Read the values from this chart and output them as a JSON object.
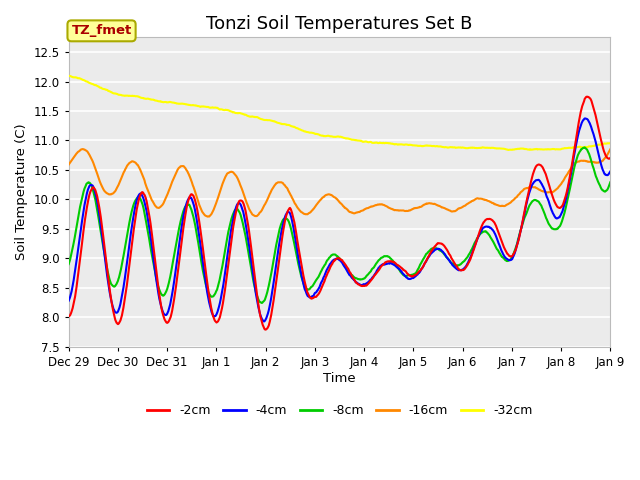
{
  "title": "Tonzi Soil Temperatures Set B",
  "xlabel": "Time",
  "ylabel": "Soil Temperature (C)",
  "ylim": [
    7.5,
    12.75
  ],
  "xlim": [
    0,
    11.0
  ],
  "legend_labels": [
    "-2cm",
    "-4cm",
    "-8cm",
    "-16cm",
    "-32cm"
  ],
  "legend_colors": [
    "#ff0000",
    "#0000ff",
    "#00cc00",
    "#ff8800",
    "#ffff00"
  ],
  "annotation_text": "TZ_fmet",
  "annotation_bg": "#ffff99",
  "annotation_border": "#aaaa00",
  "annotation_textcolor": "#aa0000",
  "xtick_labels": [
    "Dec 29",
    "Dec 30",
    "Dec 31",
    "Jan 1",
    "Jan 2",
    "Jan 3",
    "Jan 4",
    "Jan 5",
    "Jan 6",
    "Jan 7",
    "Jan 8",
    "Jan 9"
  ],
  "xtick_positions": [
    0,
    1,
    2,
    3,
    4,
    5,
    6,
    7,
    8,
    9,
    10,
    11
  ],
  "bg_color": "#ffffff",
  "plot_bg_color": "#ebebeb",
  "grid_color": "#ffffff",
  "title_fontsize": 13
}
